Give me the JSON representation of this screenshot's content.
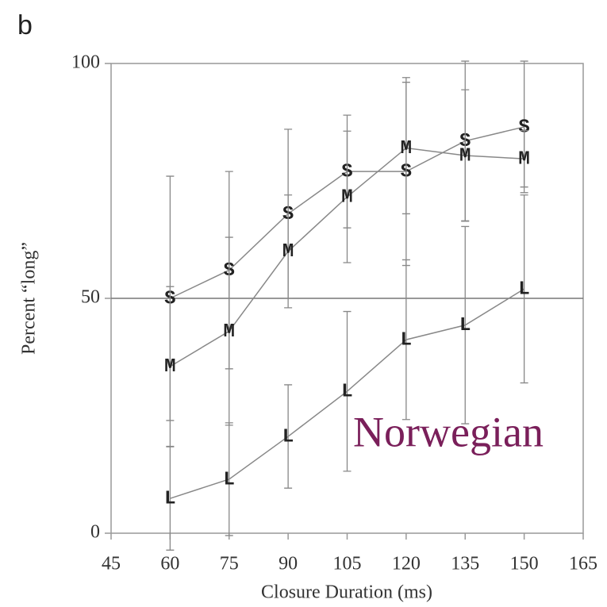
{
  "chart_data": {
    "type": "line",
    "panel_label": "b",
    "xlabel": "Closure Duration (ms)",
    "ylabel": "Percent “long”",
    "annotation": "Norwegian",
    "annotation_color": "#7a1f5a",
    "x": [
      60,
      75,
      90,
      105,
      120,
      135,
      150
    ],
    "series": [
      {
        "name": "S",
        "color": "#888888",
        "values": [
          50,
          56,
          68,
          77,
          77,
          83.5,
          86.5
        ],
        "errors": [
          26,
          21,
          18,
          12,
          20,
          17,
          14
        ]
      },
      {
        "name": "M",
        "color": "#888888",
        "values": [
          35.5,
          43,
          60,
          71.6,
          82,
          80.4,
          79.7
        ],
        "errors": [
          17,
          20,
          12,
          14,
          14,
          14,
          6
        ]
      },
      {
        "name": "L",
        "color": "#888888",
        "values": [
          7.4,
          11.5,
          20.6,
          30.2,
          41.2,
          44.3,
          52
        ],
        "errors": [
          11,
          12,
          11,
          17,
          17,
          21,
          20
        ]
      }
    ],
    "xlim": [
      45,
      165
    ],
    "xticks": [
      45,
      60,
      75,
      90,
      105,
      120,
      135,
      150,
      165
    ],
    "ylim": [
      0,
      100
    ],
    "yticks": [
      0,
      50,
      100
    ],
    "hline": 50
  }
}
